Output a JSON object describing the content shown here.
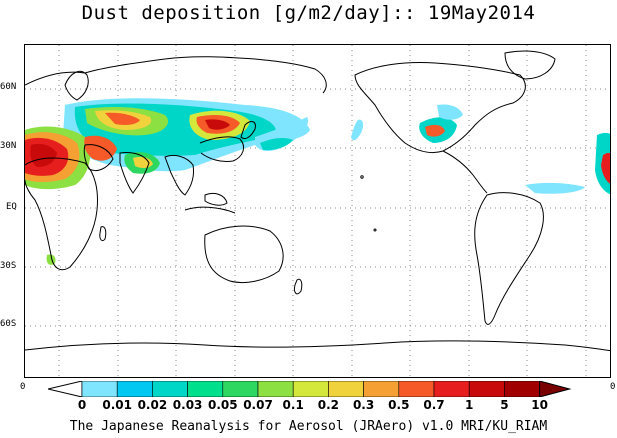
{
  "title": "Dust deposition [g/m2/day]:: 19May2014",
  "footer": "The Japanese Reanalysis for Aerosol (JRAero) v1.0 MRI/KU_RIAM",
  "lat_labels": [
    "60N",
    "30N",
    "EQ",
    "30S",
    "60S"
  ],
  "edge_labels": {
    "left": "0",
    "right": "0"
  },
  "colorbar": {
    "labels": [
      "0",
      "0.01",
      "0.02",
      "0.03",
      "0.05",
      "0.07",
      "0.1",
      "0.2",
      "0.3",
      "0.5",
      "0.7",
      "1",
      "5",
      "10"
    ],
    "colors": [
      "#ffffff",
      "#7fe5ff",
      "#00c8f0",
      "#00d6c8",
      "#00e08c",
      "#2ed860",
      "#8ce042",
      "#d4e83c",
      "#f0d23c",
      "#f5a032",
      "#f55a28",
      "#e61e1e",
      "#c80a0a",
      "#a00000",
      "#780000"
    ]
  }
}
